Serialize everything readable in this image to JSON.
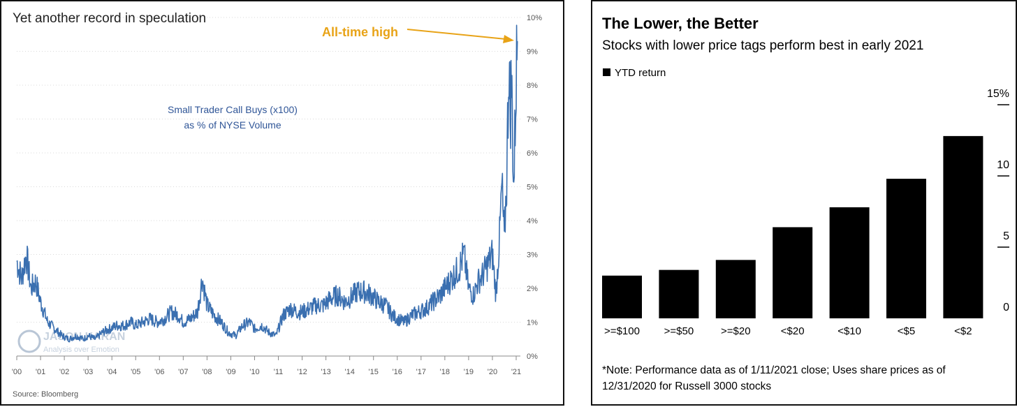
{
  "chart_data": [
    {
      "type": "line",
      "title": "Yet another record in speculation",
      "series_label_line1": "Small Trader Call Buys (x100)",
      "series_label_line2": "as % of NYSE Volume",
      "annotation": "All-time high",
      "source": "Source: Bloomberg",
      "watermark_line1": "JASON KARAN",
      "watermark_line2": "Analysis over Emotion",
      "xlabel": "",
      "ylabel": "",
      "ylim": [
        0,
        10
      ],
      "y_ticks": [
        "0%",
        "1%",
        "2%",
        "3%",
        "4%",
        "5%",
        "6%",
        "7%",
        "8%",
        "9%",
        "10%"
      ],
      "x_ticks": [
        "'00",
        "'01",
        "'02",
        "'03",
        "'04",
        "'05",
        "'06",
        "'07",
        "'08",
        "'09",
        "'10",
        "'11",
        "'12",
        "'13",
        "'14",
        "'15",
        "'16",
        "'17",
        "'18",
        "'19",
        "'20",
        "'21"
      ],
      "x": [
        2000.0,
        2000.2,
        2000.4,
        2000.6,
        2000.8,
        2001.0,
        2001.3,
        2001.6,
        2001.9,
        2002.2,
        2002.5,
        2002.8,
        2003.0,
        2003.3,
        2003.6,
        2003.9,
        2004.2,
        2004.5,
        2004.8,
        2005.0,
        2005.3,
        2005.6,
        2005.9,
        2006.2,
        2006.5,
        2006.8,
        2007.0,
        2007.3,
        2007.6,
        2007.8,
        2008.0,
        2008.3,
        2008.6,
        2008.9,
        2009.2,
        2009.5,
        2009.8,
        2010.0,
        2010.3,
        2010.6,
        2010.9,
        2011.2,
        2011.5,
        2011.8,
        2012.0,
        2012.3,
        2012.6,
        2012.9,
        2013.2,
        2013.5,
        2013.8,
        2014.0,
        2014.3,
        2014.6,
        2014.9,
        2015.2,
        2015.5,
        2015.8,
        2016.0,
        2016.3,
        2016.6,
        2016.9,
        2017.2,
        2017.5,
        2017.8,
        2018.0,
        2018.3,
        2018.6,
        2018.8,
        2019.0,
        2019.2,
        2019.4,
        2019.6,
        2019.8,
        2020.0,
        2020.15,
        2020.3,
        2020.4,
        2020.5,
        2020.6,
        2020.7,
        2020.75,
        2020.8,
        2020.9,
        2021.0,
        2021.05
      ],
      "values": [
        2.8,
        2.3,
        3.0,
        2.0,
        2.2,
        1.6,
        1.0,
        0.8,
        0.6,
        0.5,
        0.6,
        0.5,
        0.6,
        0.5,
        0.7,
        0.8,
        0.9,
        0.9,
        1.0,
        0.9,
        1.0,
        1.1,
        1.0,
        1.1,
        1.3,
        1.2,
        1.0,
        1.1,
        1.3,
        2.3,
        1.5,
        1.2,
        1.0,
        0.7,
        0.6,
        0.9,
        1.0,
        0.8,
        0.9,
        0.7,
        0.6,
        1.2,
        1.4,
        1.3,
        1.3,
        1.4,
        1.5,
        1.5,
        1.7,
        1.8,
        1.6,
        1.7,
        1.9,
        1.9,
        1.8,
        1.6,
        1.5,
        1.2,
        1.1,
        1.0,
        1.2,
        1.3,
        1.4,
        1.6,
        1.8,
        2.0,
        2.3,
        2.6,
        3.0,
        2.0,
        1.8,
        2.2,
        2.4,
        2.7,
        3.0,
        1.8,
        3.5,
        5.0,
        3.4,
        5.2,
        9.0,
        7.0,
        8.2,
        5.0,
        8.3,
        9.3
      ]
    },
    {
      "type": "bar",
      "title": "The Lower, the Better",
      "subtitle": "Stocks with lower price tags perform best in early 2021",
      "legend": "YTD return",
      "note_line1": "*Note: Performance data as of 1/11/2021 close; Uses share prices as of",
      "note_line2": "12/31/2020 for Russell 3000 stocks",
      "categories": [
        ">=$100",
        ">=$50",
        ">=$20",
        "<$20",
        "<$10",
        "<$5",
        "<$2"
      ],
      "values": [
        3.0,
        3.4,
        4.1,
        6.4,
        7.8,
        9.8,
        12.8
      ],
      "ylim": [
        0,
        15
      ],
      "y_ticks": [
        "0",
        "5",
        "10",
        "15%"
      ],
      "colors": {
        "bar": "#000000"
      }
    }
  ],
  "colors": {
    "line": "#3a6fb0",
    "series_label": "#2f5597",
    "annotation": "#e8a317",
    "axis_text": "#555555",
    "watermark": "#b9c6d6"
  }
}
